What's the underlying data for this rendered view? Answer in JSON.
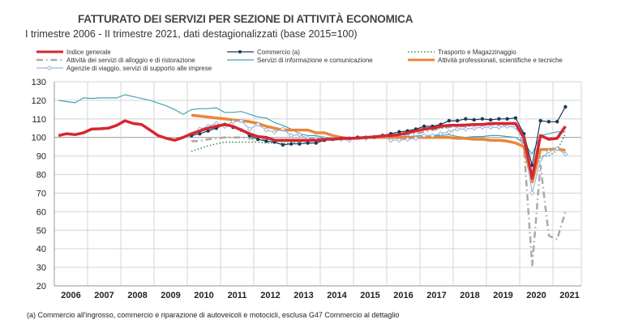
{
  "title": "FATTURATO DEI SERVIZI PER SEZIONE DI ATTIVITÀ ECONOMICA",
  "subtitle": "I trimestre 2006 - II trimestre 2021, dati destagionalizzati (base 2015=100)",
  "footnote": "(a) Commercio all'ingrosso, commercio e riparazione di autoveicoli e motocicli, esclusa G47 Commercio al dettaglio",
  "chart_data": {
    "type": "line",
    "title": "FATTURATO DEI SERVIZI PER SEZIONE DI ATTIVITÀ ECONOMICA",
    "xlabel": "",
    "ylabel": "",
    "ylim": [
      20,
      130
    ],
    "yticks": [
      "20",
      "30",
      "40",
      "50",
      "60",
      "70",
      "80",
      "90",
      "100",
      "110",
      "120",
      "130"
    ],
    "xticks": [
      "2006",
      "2007",
      "2008",
      "2009",
      "2010",
      "2011",
      "2012",
      "2013",
      "2014",
      "2015",
      "2016",
      "2017",
      "2018",
      "2019",
      "2020",
      "2021"
    ],
    "x_start": "2006Q1",
    "frequency": "quarterly",
    "grid": true,
    "legend": "top",
    "series": [
      {
        "name": "Indice generale",
        "color": "#d62631",
        "style": "thick",
        "start": 0,
        "values": [
          101,
          102,
          101.5,
          102.5,
          104.5,
          104.7,
          105,
          106.5,
          109,
          107.5,
          107,
          104,
          101,
          99.5,
          98.5,
          100,
          102,
          103.5,
          105,
          106,
          107,
          106,
          104,
          102,
          100.5,
          100,
          98.5,
          98.5,
          98.5,
          98.5,
          98.5,
          98.5,
          99,
          99,
          99.5,
          99.5,
          99.7,
          100,
          100.3,
          100.8,
          101,
          101.5,
          102.5,
          103.5,
          104.5,
          105,
          106,
          106.5,
          106.5,
          106.7,
          107,
          107,
          107.5,
          107.5,
          107.5,
          107.5,
          100,
          78,
          101,
          99,
          99.5,
          106
        ]
      },
      {
        "name": "Commercio (a)",
        "color": "#1b3a57",
        "style": "marker-dot",
        "start": 16,
        "values": [
          101,
          102,
          103.5,
          105,
          107,
          105.5,
          104,
          101,
          99,
          98,
          97.5,
          96,
          96.5,
          96.5,
          97,
          97,
          98.5,
          99,
          99.5,
          99.5,
          100,
          100,
          100.3,
          101,
          102,
          103,
          103.5,
          104.5,
          106,
          106,
          107,
          109,
          109,
          110,
          109.5,
          110,
          109.5,
          110,
          110,
          110.5,
          102,
          85,
          109,
          108.5,
          108.5,
          116.5
        ]
      },
      {
        "name": "Trasporto e Magazzinaggio",
        "color": "#2e8b57",
        "style": "dotted",
        "start": 16,
        "values": [
          92.5,
          94,
          95.5,
          96.5,
          97.5,
          97.5,
          97.5,
          97.5,
          97.5,
          97,
          97,
          97,
          97,
          97.5,
          98,
          98.5,
          99,
          99,
          99.5,
          99.5,
          100,
          100,
          100,
          100.5,
          101,
          101.5,
          102,
          103,
          104,
          104.5,
          105,
          106,
          106.5,
          106.5,
          107,
          107,
          107.5,
          108,
          108,
          108,
          103,
          79,
          90,
          90,
          93,
          102
        ]
      },
      {
        "name": "Attività dei servizi di alloggio e di ristorazione",
        "color": "#aaaaaa",
        "style": "dashdot",
        "start": 16,
        "values": [
          98,
          98,
          99,
          99.5,
          100,
          100,
          100,
          99.5,
          99,
          99,
          98.5,
          98,
          98,
          98,
          98,
          98,
          98.5,
          99,
          99,
          99.5,
          100,
          100,
          100,
          100.5,
          101,
          101,
          101.5,
          102,
          103,
          104,
          105,
          105.5,
          106,
          106,
          106.5,
          107,
          107,
          107,
          107,
          107,
          95,
          31,
          85,
          47,
          45,
          60
        ]
      },
      {
        "name": "Servizi di informazione e comunicazione",
        "color": "#4aa0b5",
        "style": "thin",
        "start": 0,
        "values": [
          120,
          119.3,
          118.7,
          121.3,
          121,
          121.3,
          121.3,
          121.3,
          123,
          122,
          121,
          120,
          118.5,
          117,
          115,
          112.5,
          115,
          115.5,
          115.5,
          116,
          113.5,
          113.5,
          114,
          112.5,
          111,
          110.5,
          108,
          106.5,
          104.5,
          102,
          101,
          101,
          100,
          99.5,
          99.5,
          99.5,
          100,
          100,
          100.3,
          100.5,
          100.5,
          100.5,
          100.5,
          100.8,
          101,
          101,
          101,
          101.5,
          100.5,
          100,
          100.5,
          100.5,
          101,
          101,
          100.5,
          100,
          97,
          91,
          101,
          102,
          103,
          103
        ]
      },
      {
        "name": "Attività professionali, scientifiche e tecniche",
        "color": "#e8873a",
        "style": "thick",
        "start": 16,
        "values": [
          112,
          111.5,
          111,
          110.5,
          110,
          109.5,
          109,
          108.5,
          107.5,
          106,
          105,
          104,
          104,
          104,
          104,
          102.5,
          102.5,
          101,
          100,
          99.5,
          99.5,
          100,
          100,
          100,
          100,
          100,
          99.8,
          100,
          100,
          100,
          100,
          100,
          99.5,
          99.5,
          99,
          99,
          98.5,
          98.5,
          98,
          97,
          95,
          76,
          93.5,
          93.5,
          93.8,
          93
        ]
      },
      {
        "name": "Agenzie di viaggio, servizi di supporto alle imprese",
        "color": "#9fb4dc",
        "style": "marker-diamond",
        "start": 16,
        "values": [
          101,
          104.5,
          106,
          107.5,
          106,
          108.5,
          109,
          104.5,
          107,
          104,
          103,
          104.5,
          101,
          101.5,
          99.5,
          99.5,
          99.5,
          99.5,
          99,
          98.5,
          100,
          99.5,
          100,
          101,
          98.5,
          98.5,
          99,
          99.5,
          101,
          101,
          102,
          103,
          104.5,
          104.5,
          105,
          105.5,
          105.5,
          105.5,
          106,
          105.5,
          99,
          70,
          88,
          92.5,
          94,
          91
        ]
      }
    ]
  }
}
